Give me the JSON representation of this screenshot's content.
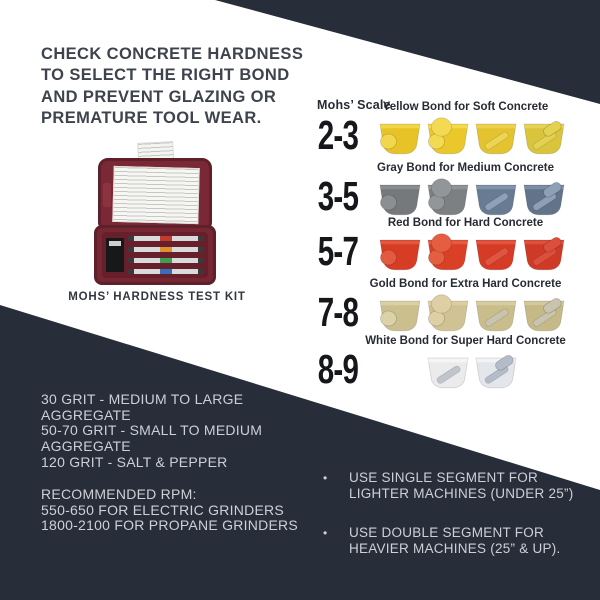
{
  "palette": {
    "dark_navy": "#272d39",
    "light_text": "#cdd0d6",
    "heading_text": "#3e434d",
    "case_maroon": "#7b2836"
  },
  "headline": {
    "lines": [
      "CHECK CONCRETE HARDNESS",
      "TO SELECT THE RIGHT BOND",
      "AND PREVENT GLAZING OR",
      "PREMATURE TOOL WEAR."
    ]
  },
  "kit": {
    "caption": "MOHS’ HARDNESS TEST KIT",
    "pick_band_colors": [
      "#c23b2e",
      "#e0912b",
      "#3f9e4d",
      "#3b6fb5"
    ]
  },
  "mohs": {
    "header": "Mohs’ Scale",
    "rows": [
      {
        "range": "2-3",
        "label": "Yellow Bond for Soft Concrete",
        "tools": [
          {
            "variant": "plug",
            "body": "#e7c327",
            "top": "#f2d74e"
          },
          {
            "variant": "knob",
            "body": "#eac82b",
            "top": "#f4da52"
          },
          {
            "variant": "single-segment",
            "body": "#e4c330",
            "top": "#eed453",
            "detail": "#eed453"
          },
          {
            "variant": "double-segment",
            "body": "#d9c43c",
            "top": "#e7d55c",
            "detail": "#e3d152"
          }
        ]
      },
      {
        "range": "3-5",
        "label": "Gray Bond for Medium Concrete",
        "tools": [
          {
            "variant": "plug",
            "body": "#76797b",
            "top": "#8c8f91"
          },
          {
            "variant": "knob",
            "body": "#7d8082",
            "top": "#939698"
          },
          {
            "variant": "single-segment",
            "body": "#677b93",
            "top": "#8396ac",
            "detail": "#8da0b6"
          },
          {
            "variant": "double-segment",
            "body": "#627489",
            "top": "#7e91a7",
            "detail": "#8da0b6"
          }
        ]
      },
      {
        "range": "5-7",
        "label": "Red Bond for Hard Concrete",
        "tools": [
          {
            "variant": "plug",
            "body": "#d73c24",
            "top": "#e25a40"
          },
          {
            "variant": "knob",
            "body": "#da4026",
            "top": "#e55e42"
          },
          {
            "variant": "single-segment",
            "body": "#d63b25",
            "top": "#e25943",
            "detail": "#e05541"
          },
          {
            "variant": "double-segment",
            "body": "#cf3a27",
            "top": "#de5340",
            "detail": "#db4f3c"
          }
        ]
      },
      {
        "range": "7-8",
        "label": "Gold Bond for Extra Hard Concrete",
        "tools": [
          {
            "variant": "plug",
            "body": "#ccbf8e",
            "top": "#dcd2a8"
          },
          {
            "variant": "knob",
            "body": "#cfc393",
            "top": "#decfa4"
          },
          {
            "variant": "single-segment",
            "body": "#cabd8c",
            "top": "#d8cda2",
            "detail": "#c9c4ad"
          },
          {
            "variant": "double-segment",
            "body": "#c5b987",
            "top": "#d4c99e",
            "detail": "#c9c4ad"
          }
        ]
      },
      {
        "range": "8-9",
        "label": "White Bond for Super Hard Concrete",
        "tools": [
          {
            "variant": "single-segment",
            "body": "#ebebeb",
            "top": "#f6f6f6",
            "detail": "#c0c5cc"
          },
          {
            "variant": "double-segment",
            "body": "#e3e7ec",
            "top": "#f2f4f7",
            "detail": "#b3bcc8"
          }
        ]
      }
    ]
  },
  "grit_info": {
    "lines": [
      "30 GRIT - MEDIUM TO LARGE",
      "AGGREGATE",
      "50-70 GRIT - SMALL TO MEDIUM",
      "AGGREGATE",
      "120 GRIT - SALT & PEPPER"
    ]
  },
  "rpm_info": {
    "lines": [
      "RECOMMENDED RPM:",
      "550-650 FOR ELECTRIC GRINDERS",
      "1800-2100 FOR PROPANE GRINDERS"
    ]
  },
  "bullets": [
    {
      "lines": [
        "USE SINGLE SEGMENT FOR",
        "LIGHTER MACHINES (UNDER 25”)"
      ]
    },
    {
      "lines": [
        "USE DOUBLE SEGMENT FOR",
        "HEAVIER MACHINES (25” & UP)."
      ]
    }
  ]
}
